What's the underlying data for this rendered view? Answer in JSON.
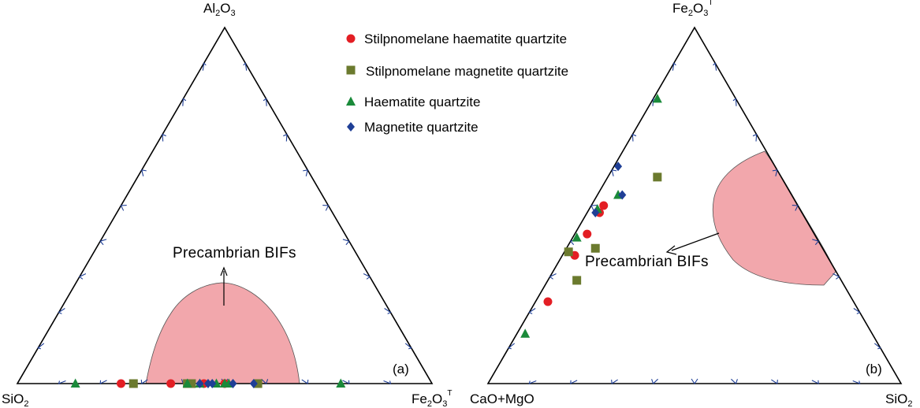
{
  "legend": {
    "items": [
      {
        "label": "Stilpnomelane haematite quartzite",
        "marker": "circle",
        "color": "#e31e24"
      },
      {
        "label": "Stilpnomelane magnetite quartzite",
        "marker": "square",
        "color": "#6b7a2e"
      },
      {
        "label": "Haematite quartzite",
        "marker": "triangle",
        "color": "#1a8a3a"
      },
      {
        "label": "Magnetite quartzite",
        "marker": "diamond",
        "color": "#1f3f96"
      }
    ]
  },
  "colors": {
    "field_fill": "#f2a7ac",
    "frame": "#000000",
    "ticks": "#1f3f96"
  },
  "chart_data": [
    {
      "type": "scatter",
      "subtype": "ternary",
      "panel_label": "(a)",
      "vertices": {
        "top": {
          "base": "Al",
          "sub": "2",
          "base2": "O",
          "sub2": "3",
          "sup": ""
        },
        "left": {
          "base": "SiO",
          "sub": "2",
          "base2": "",
          "sub2": "",
          "sup": ""
        },
        "right": {
          "base": "Fe",
          "sub": "2",
          "base2": "O",
          "sub2": "3",
          "sup": "T"
        }
      },
      "field_label": "Precambrian BIFs",
      "series": [
        {
          "marker": "circle",
          "points": [
            [
              0.0,
              0.25
            ],
            [
              0.0,
              0.37
            ],
            [
              0.0,
              0.45
            ],
            [
              0.0,
              0.5
            ]
          ]
        },
        {
          "marker": "square",
          "points": [
            [
              0.0,
              0.28
            ],
            [
              0.0,
              0.41
            ],
            [
              0.0,
              0.42
            ],
            [
              0.0,
              0.58
            ]
          ]
        },
        {
          "marker": "triangle",
          "points": [
            [
              0.0,
              0.14
            ],
            [
              0.0,
              0.41
            ],
            [
              0.0,
              0.44
            ],
            [
              0.0,
              0.48
            ],
            [
              0.0,
              0.5
            ],
            [
              0.0,
              0.51
            ],
            [
              0.0,
              0.78
            ]
          ]
        },
        {
          "marker": "diamond",
          "points": [
            [
              0.0,
              0.44
            ],
            [
              0.0,
              0.46
            ],
            [
              0.0,
              0.47
            ],
            [
              0.0,
              0.52
            ],
            [
              0.0,
              0.57
            ]
          ]
        }
      ]
    },
    {
      "type": "scatter",
      "subtype": "ternary",
      "panel_label": "(b)",
      "vertices": {
        "top": {
          "base": "Fe",
          "sub": "2",
          "base2": "O",
          "sub2": "3",
          "sup": "T"
        },
        "left": {
          "base": "CaO+MgO",
          "sub": "",
          "base2": "",
          "sub2": "",
          "sup": ""
        },
        "right": {
          "base": "SiO",
          "sub": "2",
          "base2": "",
          "sub2": "",
          "sup": ""
        }
      },
      "field_label": "Precambrian BIFs",
      "series": [
        {
          "marker": "circle",
          "points": [
            [
              0.5,
              0.03
            ],
            [
              0.48,
              0.03
            ],
            [
              0.42,
              0.03
            ],
            [
              0.36,
              0.03
            ],
            [
              0.23,
              0.03
            ]
          ]
        },
        {
          "marker": "square",
          "points": [
            [
              0.58,
              0.12
            ],
            [
              0.38,
              0.07
            ],
            [
              0.29,
              0.07
            ],
            [
              0.37,
              0.01
            ]
          ]
        },
        {
          "marker": "triangle",
          "points": [
            [
              0.8,
              0.01
            ],
            [
              0.53,
              0.05
            ],
            [
              0.49,
              0.02
            ],
            [
              0.41,
              0.01
            ],
            [
              0.14,
              0.02
            ]
          ]
        },
        {
          "marker": "diamond",
          "points": [
            [
              0.61,
              0.01
            ],
            [
              0.53,
              0.06
            ],
            [
              0.48,
              0.02
            ]
          ]
        }
      ]
    }
  ]
}
